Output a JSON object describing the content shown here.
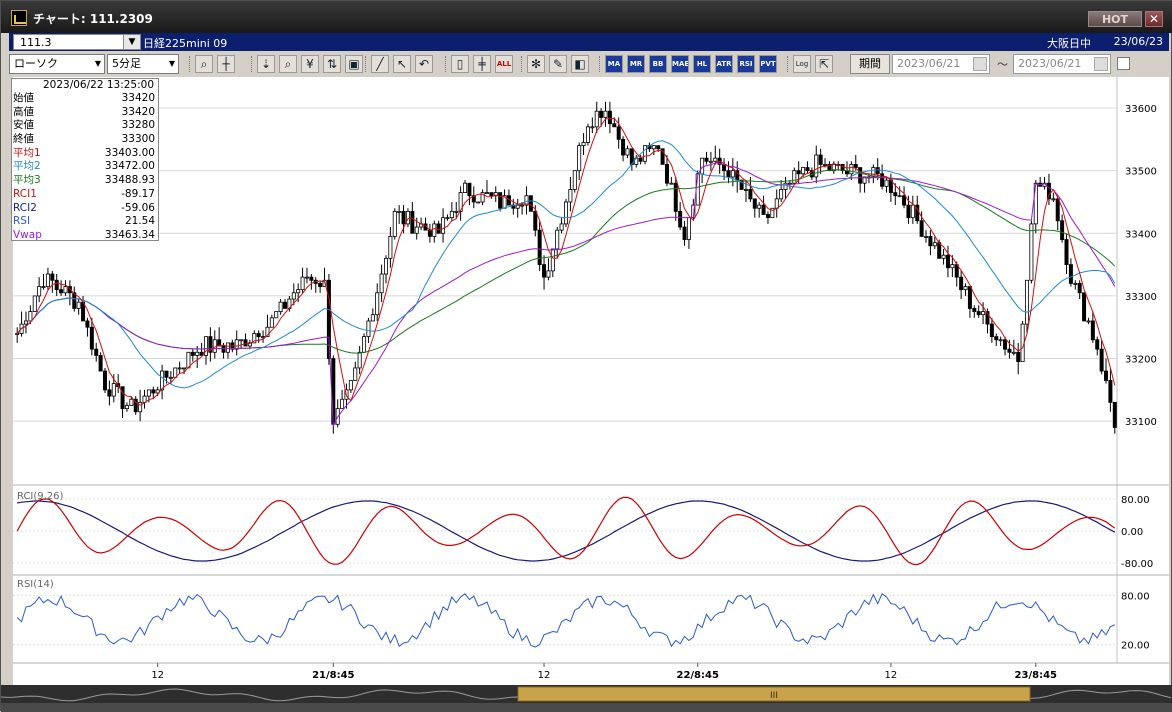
{
  "window": {
    "title": "チャート: 111.2309",
    "hot_label": "HOT",
    "close_glyph": "✕"
  },
  "infobar": {
    "code": "111.3",
    "instrument": "日経225mini 09",
    "market": "大阪日中",
    "date": "23/06/23"
  },
  "toolbar": {
    "chart_type": "ローソク",
    "interval": "5分足",
    "groups": [
      [
        "zoom-icon",
        "crosshair-icon"
      ],
      [
        "draw-down-icon",
        "search-icon",
        "price-icon",
        "split-icon",
        "lock-icon"
      ],
      [
        "trendline-icon",
        "cursor-icon",
        "undo-icon"
      ],
      [
        "candle-icon",
        "ohlc-icon",
        "all-icon"
      ],
      [
        "settings-icon",
        "paint-icon",
        "color-icon"
      ],
      [
        "MA",
        "MR",
        "BB",
        "MAE",
        "HL",
        "ATR",
        "RSI",
        "PVT"
      ],
      [
        "Log",
        "export-icon"
      ]
    ],
    "all_label": "ALL",
    "log_label": "Log",
    "period_label": "期間",
    "date_from": "2023/06/21",
    "date_to": "2023/06/21",
    "tilde": "～"
  },
  "ohlc_panel": {
    "timestamp": "2023/06/22  13:25:00",
    "rows": [
      {
        "label": "始値",
        "value": "33420",
        "color": "#000000"
      },
      {
        "label": "高値",
        "value": "33420",
        "color": "#000000"
      },
      {
        "label": "安値",
        "value": "33280",
        "color": "#000000"
      },
      {
        "label": "終値",
        "value": "33300",
        "color": "#000000"
      },
      {
        "label": "平均1",
        "value": "33403.00",
        "color": "#d01010"
      },
      {
        "label": "平均2",
        "value": "33472.00",
        "color": "#1e8ad0"
      },
      {
        "label": "平均3",
        "value": "33488.93",
        "color": "#1a7a1a"
      },
      {
        "label": "RCI1",
        "value": "-89.17",
        "color": "#d01010"
      },
      {
        "label": "RCI2",
        "value": "-59.06",
        "color": "#1a1a8a"
      },
      {
        "label": "RSI",
        "value": "21.54",
        "color": "#2a5ad0"
      },
      {
        "label": "Vwap",
        "value": "33463.34",
        "color": "#9a1ad0"
      }
    ]
  },
  "colors": {
    "candle_up": "#ffffff",
    "candle_down": "#000000",
    "ma1": "#d01010",
    "ma2": "#1e8ad0",
    "ma3": "#1a7a1a",
    "vwap": "#9a1ad0",
    "rci1": "#cc0000",
    "rci2": "#1a1a7a",
    "rsi": "#2a5ad0",
    "navigator": "#c9a34a"
  },
  "chart_data": [
    {
      "type": "candlestick",
      "price_axis": {
        "ticks": [
          33600,
          33500,
          33400,
          33300,
          33200,
          33100
        ],
        "ylim": [
          33030,
          33640
        ]
      },
      "time_axis": {
        "tick_labels": [
          "12",
          "21/8:45",
          "12",
          "22/8:45",
          "12",
          "23/8:45"
        ],
        "n_bars": 200
      },
      "candles": [],
      "ma1": [],
      "ma2": [],
      "ma3": [],
      "vwap": []
    },
    {
      "type": "line",
      "label": "RCI(9,26)",
      "ylim": [
        -100,
        100
      ],
      "ticks": [
        "80.00",
        "0.00",
        "-80.00"
      ],
      "tick_values": [
        80,
        0,
        -80
      ],
      "series": [
        {
          "values": []
        },
        {
          "values": []
        }
      ]
    },
    {
      "type": "line",
      "label": "RSI(14)",
      "ylim": [
        0,
        100
      ],
      "ticks": [
        "80.00",
        "20.00"
      ],
      "tick_values": [
        80,
        20
      ],
      "series": [
        {
          "values": []
        }
      ]
    }
  ],
  "navigator": {
    "handle_glyph": "III"
  }
}
